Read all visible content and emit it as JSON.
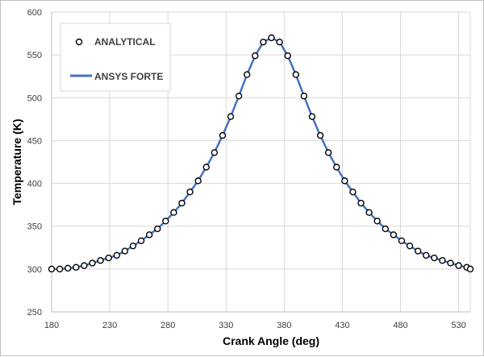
{
  "chart_data": {
    "type": "line",
    "xlabel": "Crank Angle (deg)",
    "ylabel": "Temperature (K)",
    "xlim": [
      180,
      540
    ],
    "ylim": [
      250,
      600
    ],
    "x_ticks": [
      180,
      230,
      280,
      330,
      380,
      430,
      480,
      530
    ],
    "y_ticks": [
      250,
      300,
      350,
      400,
      450,
      500,
      550,
      600
    ],
    "grid": true,
    "legend_position": "top-left",
    "series": [
      {
        "name": "ANALYTICAL",
        "style": "markers",
        "marker_color": "#000000",
        "x": [
          180,
          187,
          194,
          201,
          208,
          215,
          222,
          229,
          236,
          243,
          250,
          257,
          264,
          271,
          278,
          285,
          292,
          299,
          306,
          313,
          320,
          327,
          334,
          341,
          348,
          355,
          362,
          369,
          376,
          383,
          390,
          397,
          404,
          411,
          418,
          425,
          432,
          439,
          446,
          453,
          460,
          467,
          474,
          481,
          488,
          495,
          502,
          509,
          516,
          523,
          530,
          537,
          540
        ],
        "y": [
          300,
          300,
          301,
          302,
          304,
          307,
          310,
          313,
          316,
          321,
          327,
          333,
          340,
          347,
          356,
          366,
          377,
          390,
          403,
          419,
          436,
          456,
          478,
          502,
          527,
          549,
          565,
          570,
          565,
          549,
          527,
          502,
          478,
          456,
          436,
          419,
          403,
          390,
          377,
          366,
          356,
          347,
          340,
          333,
          327,
          321,
          316,
          313,
          310,
          307,
          304,
          302,
          300
        ]
      },
      {
        "name": "ANSYS FORTE",
        "style": "line",
        "color": "#4472c4",
        "x": [
          180,
          187,
          194,
          201,
          208,
          215,
          222,
          229,
          236,
          243,
          250,
          257,
          264,
          271,
          278,
          285,
          292,
          299,
          306,
          313,
          320,
          327,
          334,
          341,
          348,
          355,
          362,
          369,
          376,
          383,
          390,
          397,
          404,
          411,
          418,
          425,
          432,
          439,
          446,
          453,
          460,
          467,
          474,
          481,
          488,
          495,
          502,
          509,
          516,
          523,
          530,
          537,
          540
        ],
        "y": [
          300,
          300,
          301,
          302,
          304,
          307,
          310,
          313,
          316,
          321,
          327,
          333,
          340,
          347,
          356,
          366,
          377,
          390,
          403,
          419,
          436,
          456,
          478,
          502,
          527,
          549,
          565,
          570,
          565,
          549,
          527,
          502,
          478,
          456,
          436,
          419,
          403,
          390,
          377,
          366,
          356,
          347,
          340,
          333,
          327,
          321,
          316,
          313,
          310,
          307,
          304,
          302,
          300
        ]
      }
    ]
  }
}
